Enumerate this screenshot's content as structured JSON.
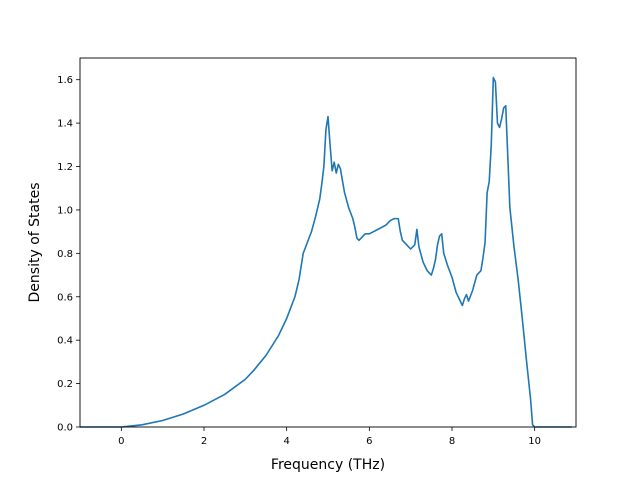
{
  "chart_data": {
    "type": "line",
    "title": "",
    "xlabel": "Frequency (THz)",
    "ylabel": "Density of States",
    "xlim": [
      -1.0,
      11.0
    ],
    "ylim": [
      0.0,
      1.7
    ],
    "xticks": [
      "0",
      "2",
      "4",
      "6",
      "8",
      "10"
    ],
    "yticks": [
      "0.0",
      "0.2",
      "0.4",
      "0.6",
      "0.8",
      "1.0",
      "1.2",
      "1.4",
      "1.6"
    ],
    "grid": false,
    "line_color": "#1f77b4",
    "series": [
      {
        "x": [
          -1.0,
          0.0,
          0.5,
          1.0,
          1.5,
          2.0,
          2.5,
          3.0,
          3.2,
          3.5,
          3.8,
          4.0,
          4.2,
          4.3,
          4.4,
          4.6,
          4.7,
          4.8,
          4.85,
          4.9,
          4.95,
          5.0,
          5.05,
          5.1,
          5.15,
          5.2,
          5.25,
          5.3,
          5.4,
          5.5,
          5.6,
          5.65,
          5.7,
          5.75,
          5.8,
          5.9,
          6.0,
          6.1,
          6.2,
          6.3,
          6.4,
          6.5,
          6.6,
          6.7,
          6.75,
          6.8,
          6.9,
          7.0,
          7.1,
          7.15,
          7.2,
          7.3,
          7.4,
          7.5,
          7.55,
          7.6,
          7.65,
          7.7,
          7.75,
          7.8,
          7.9,
          8.0,
          8.1,
          8.2,
          8.25,
          8.3,
          8.35,
          8.4,
          8.5,
          8.6,
          8.7,
          8.75,
          8.8,
          8.85,
          8.9,
          8.95,
          9.0,
          9.05,
          9.1,
          9.15,
          9.2,
          9.25,
          9.3,
          9.4,
          9.5,
          9.6,
          9.7,
          9.8,
          9.9,
          9.95,
          10.0,
          10.9
        ],
        "y": [
          0.0,
          0.0,
          0.01,
          0.03,
          0.06,
          0.1,
          0.15,
          0.22,
          0.26,
          0.33,
          0.42,
          0.5,
          0.6,
          0.68,
          0.8,
          0.9,
          0.97,
          1.05,
          1.12,
          1.2,
          1.37,
          1.43,
          1.3,
          1.18,
          1.22,
          1.17,
          1.21,
          1.19,
          1.08,
          1.01,
          0.96,
          0.92,
          0.87,
          0.86,
          0.87,
          0.89,
          0.89,
          0.9,
          0.91,
          0.92,
          0.93,
          0.95,
          0.96,
          0.96,
          0.9,
          0.86,
          0.84,
          0.82,
          0.84,
          0.91,
          0.83,
          0.76,
          0.72,
          0.7,
          0.73,
          0.77,
          0.84,
          0.88,
          0.89,
          0.8,
          0.74,
          0.69,
          0.62,
          0.58,
          0.56,
          0.59,
          0.61,
          0.58,
          0.63,
          0.7,
          0.72,
          0.78,
          0.85,
          1.08,
          1.13,
          1.3,
          1.61,
          1.59,
          1.4,
          1.38,
          1.42,
          1.47,
          1.48,
          1.01,
          0.83,
          0.68,
          0.5,
          0.31,
          0.13,
          0.01,
          0.0,
          0.0
        ]
      }
    ]
  }
}
